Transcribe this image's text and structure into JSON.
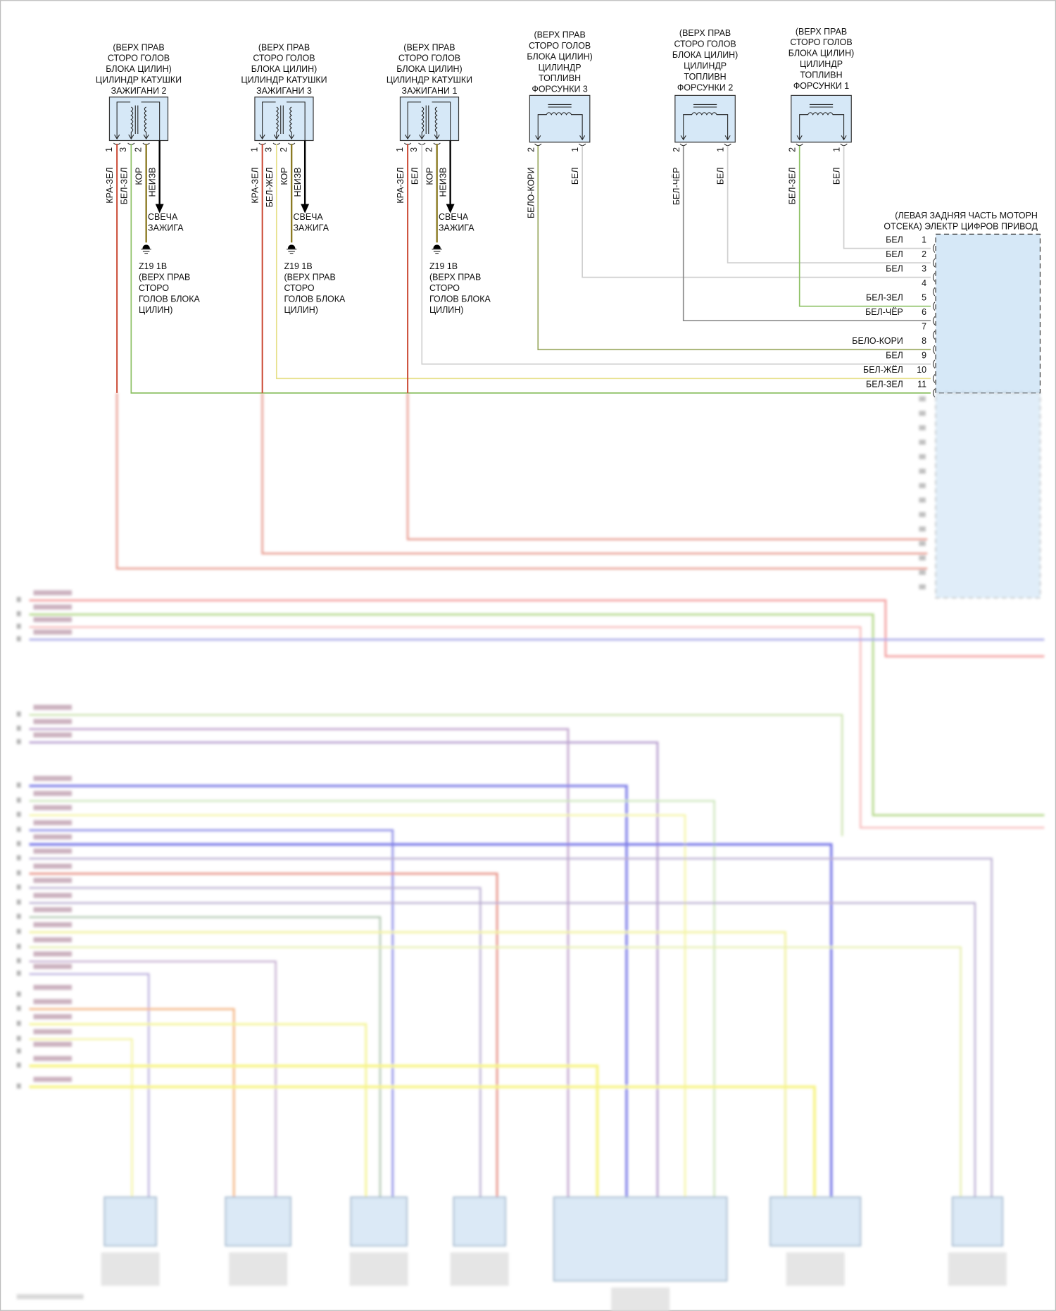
{
  "coils": [
    {
      "title": [
        "(ВЕРХ ПРАВ",
        "СТОРО ГОЛОВ",
        "БЛОКА ЦИЛИН)",
        "ЦИЛИНДР КАТУШКИ",
        "ЗАЖИГАНИ 2"
      ],
      "pins": [
        {
          "num": "1",
          "wire": "КРА-ЗЕЛ",
          "color": "#c8402a"
        },
        {
          "num": "3",
          "wire": "БЕЛ-ЗЕЛ",
          "color": "#8cc063"
        },
        {
          "num": "2",
          "wire": "КОР",
          "color": "#8b7a22"
        }
      ],
      "arrow_wire": "НЕИЗВ",
      "spark": [
        "СВЕЧА",
        "ЗАЖИГА"
      ],
      "ground": [
        "Z19 1B",
        "(ВЕРХ ПРАВ",
        "СТОРО",
        "ГОЛОВ БЛОКА",
        "ЦИЛИН)"
      ]
    },
    {
      "title": [
        "(ВЕРХ ПРАВ",
        "СТОРО ГОЛОВ",
        "БЛОКА ЦИЛИН)",
        "ЦИЛИНДР КАТУШКИ",
        "ЗАЖИГАНИ 3"
      ],
      "pins": [
        {
          "num": "1",
          "wire": "КРА-ЗЕЛ",
          "color": "#c8402a"
        },
        {
          "num": "3",
          "wire": "БЕЛ-ЖЕЛ",
          "color": "#e6e08a"
        },
        {
          "num": "2",
          "wire": "КОР",
          "color": "#8b7a22"
        }
      ],
      "arrow_wire": "НЕИЗВ",
      "spark": [
        "СВЕЧА",
        "ЗАЖИГА"
      ],
      "ground": [
        "Z19 1B",
        "(ВЕРХ ПРАВ",
        "СТОРО",
        "ГОЛОВ БЛОКА",
        "ЦИЛИН)"
      ]
    },
    {
      "title": [
        "(ВЕРХ ПРАВ",
        "СТОРО ГОЛОВ",
        "БЛОКА ЦИЛИН)",
        "ЦИЛИНДР КАТУШКИ",
        "ЗАЖИГАНИ 1"
      ],
      "pins": [
        {
          "num": "1",
          "wire": "КРА-ЗЕЛ",
          "color": "#c8402a"
        },
        {
          "num": "3",
          "wire": "БЕЛ",
          "color": "#cfcfcf"
        },
        {
          "num": "2",
          "wire": "КОР",
          "color": "#8b7a22"
        }
      ],
      "arrow_wire": "НЕИЗВ",
      "spark": [
        "СВЕЧА",
        "ЗАЖИГА"
      ],
      "ground": [
        "Z19 1B",
        "(ВЕРХ ПРАВ",
        "СТОРО",
        "ГОЛОВ БЛОКА",
        "ЦИЛИН)"
      ]
    }
  ],
  "injectors": [
    {
      "title": [
        "(ВЕРХ ПРАВ",
        "СТОРО ГОЛОВ",
        "БЛОКА ЦИЛИН)",
        "ЦИЛИНДР",
        "ТОПЛИВН",
        "ФОРСУНКИ 3"
      ],
      "pins": [
        {
          "num": "2",
          "wire": "БЕЛО-КОРИ",
          "color": "#9aa860"
        },
        {
          "num": "1",
          "wire": "БЕЛ",
          "color": "#cfcfcf"
        }
      ]
    },
    {
      "title": [
        "(ВЕРХ ПРАВ",
        "СТОРО ГОЛОВ",
        "БЛОКА ЦИЛИН)",
        "ЦИЛИНДР",
        "ТОПЛИВН",
        "ФОРСУНКИ 2"
      ],
      "pins": [
        {
          "num": "2",
          "wire": "БЕЛ-ЧЁР",
          "color": "#8a8a8a"
        },
        {
          "num": "1",
          "wire": "БЕЛ",
          "color": "#cfcfcf"
        }
      ]
    },
    {
      "title": [
        "(ВЕРХ ПРАВ",
        "СТОРО ГОЛОВ",
        "БЛОКА ЦИЛИН)",
        "ЦИЛИНДР",
        "ТОПЛИВН",
        "ФОРСУНКИ 1"
      ],
      "pins": [
        {
          "num": "2",
          "wire": "БЕЛ-ЗЕЛ",
          "color": "#8cc063"
        },
        {
          "num": "1",
          "wire": "БЕЛ",
          "color": "#cfcfcf"
        }
      ]
    }
  ],
  "ecu": {
    "title": [
      "(ЛЕВАЯ ЗАДНЯЯ ЧАСТЬ МОТОРН",
      "ОТСЕКА) ЭЛЕКТР ЦИФРОВ ПРИВОД"
    ],
    "pins": [
      {
        "num": "1",
        "wire": "БЕЛ"
      },
      {
        "num": "2",
        "wire": "БЕЛ"
      },
      {
        "num": "3",
        "wire": "БЕЛ"
      },
      {
        "num": "4",
        "wire": ""
      },
      {
        "num": "5",
        "wire": "БЕЛ-ЗЕЛ"
      },
      {
        "num": "6",
        "wire": "БЕЛ-ЧЁР"
      },
      {
        "num": "7",
        "wire": ""
      },
      {
        "num": "8",
        "wire": "БЕЛО-КОРИ"
      },
      {
        "num": "9",
        "wire": "БЕЛ"
      },
      {
        "num": "10",
        "wire": "БЕЛ-ЖЁЛ"
      },
      {
        "num": "11",
        "wire": "БЕЛ-ЗЕЛ"
      }
    ]
  },
  "icons": [
    "ignition-coil-symbol",
    "injector-coil-symbol",
    "ground-icon",
    "arrow-down-icon"
  ]
}
